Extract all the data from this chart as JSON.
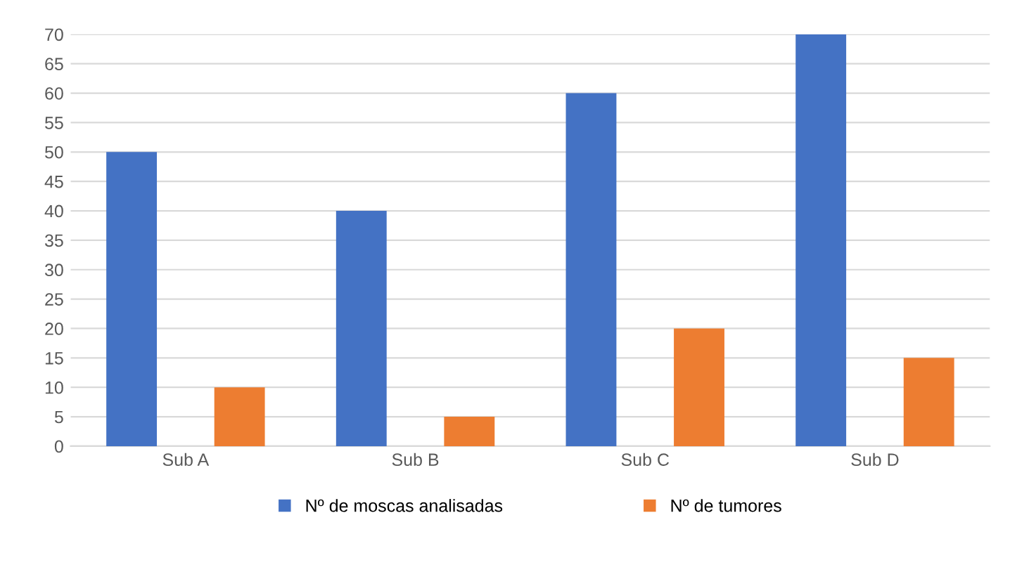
{
  "chart_data": {
    "type": "bar",
    "categories": [
      "Sub A",
      "Sub B",
      "Sub C",
      "Sub D"
    ],
    "series": [
      {
        "name": "Nº de moscas analisadas",
        "color": "#4472c4",
        "values": [
          50,
          40,
          60,
          70
        ]
      },
      {
        "name": "Nº de tumores",
        "color": "#ed7d31",
        "values": [
          10,
          5,
          20,
          15
        ]
      }
    ],
    "ylim": [
      0,
      70
    ],
    "yticks": [
      0,
      5,
      10,
      15,
      20,
      25,
      30,
      35,
      40,
      45,
      50,
      55,
      60,
      65,
      70
    ],
    "grid": "y",
    "legend": "bottom"
  }
}
